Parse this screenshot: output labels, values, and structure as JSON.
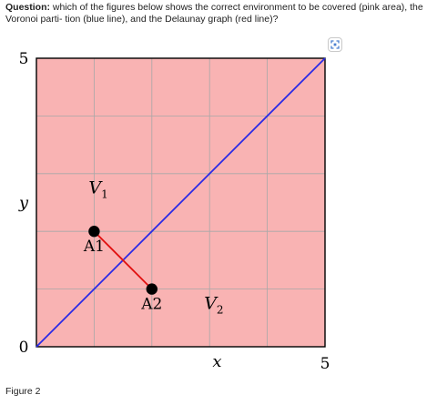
{
  "question": {
    "prefix": "Question:",
    "text": "which of the figures below shows the correct environment to be covered (pink area), the Voronoi parti- tion (blue line), and the Delaunay graph (red line)?"
  },
  "diagram": {
    "x_range": [
      0,
      5
    ],
    "y_range": [
      0,
      5
    ],
    "grid_step": 1,
    "axis": {
      "y_top_label": "5",
      "origin_label": "0",
      "x_right_label": "5",
      "x_label": "x",
      "y_label": "y"
    },
    "environment": {
      "x": [
        0,
        5
      ],
      "y": [
        0,
        5
      ],
      "color": "#f9b3b3"
    },
    "voronoi_line": {
      "from": [
        0,
        0
      ],
      "to": [
        5,
        5
      ],
      "color": "#2a2ae6"
    },
    "delaunay_edge": {
      "from": "A1",
      "to": "A2",
      "color": "#e01010"
    },
    "agents": [
      {
        "id": "A1",
        "label": "A1",
        "x": 1,
        "y": 2
      },
      {
        "id": "A2",
        "label": "A2",
        "x": 2,
        "y": 1
      }
    ],
    "regions": [
      {
        "label_main": "V",
        "label_sub": "1",
        "x": 1,
        "y": 2.75
      },
      {
        "label_main": "V",
        "label_sub": "2",
        "x": 3,
        "y": 0.75
      }
    ],
    "colors": {
      "grid": "#a8a8a8",
      "frame": "#000000",
      "point": "#000000"
    }
  },
  "caption": {
    "text": "Figure 2"
  },
  "controls": {
    "expand_icon": "expand-icon"
  }
}
